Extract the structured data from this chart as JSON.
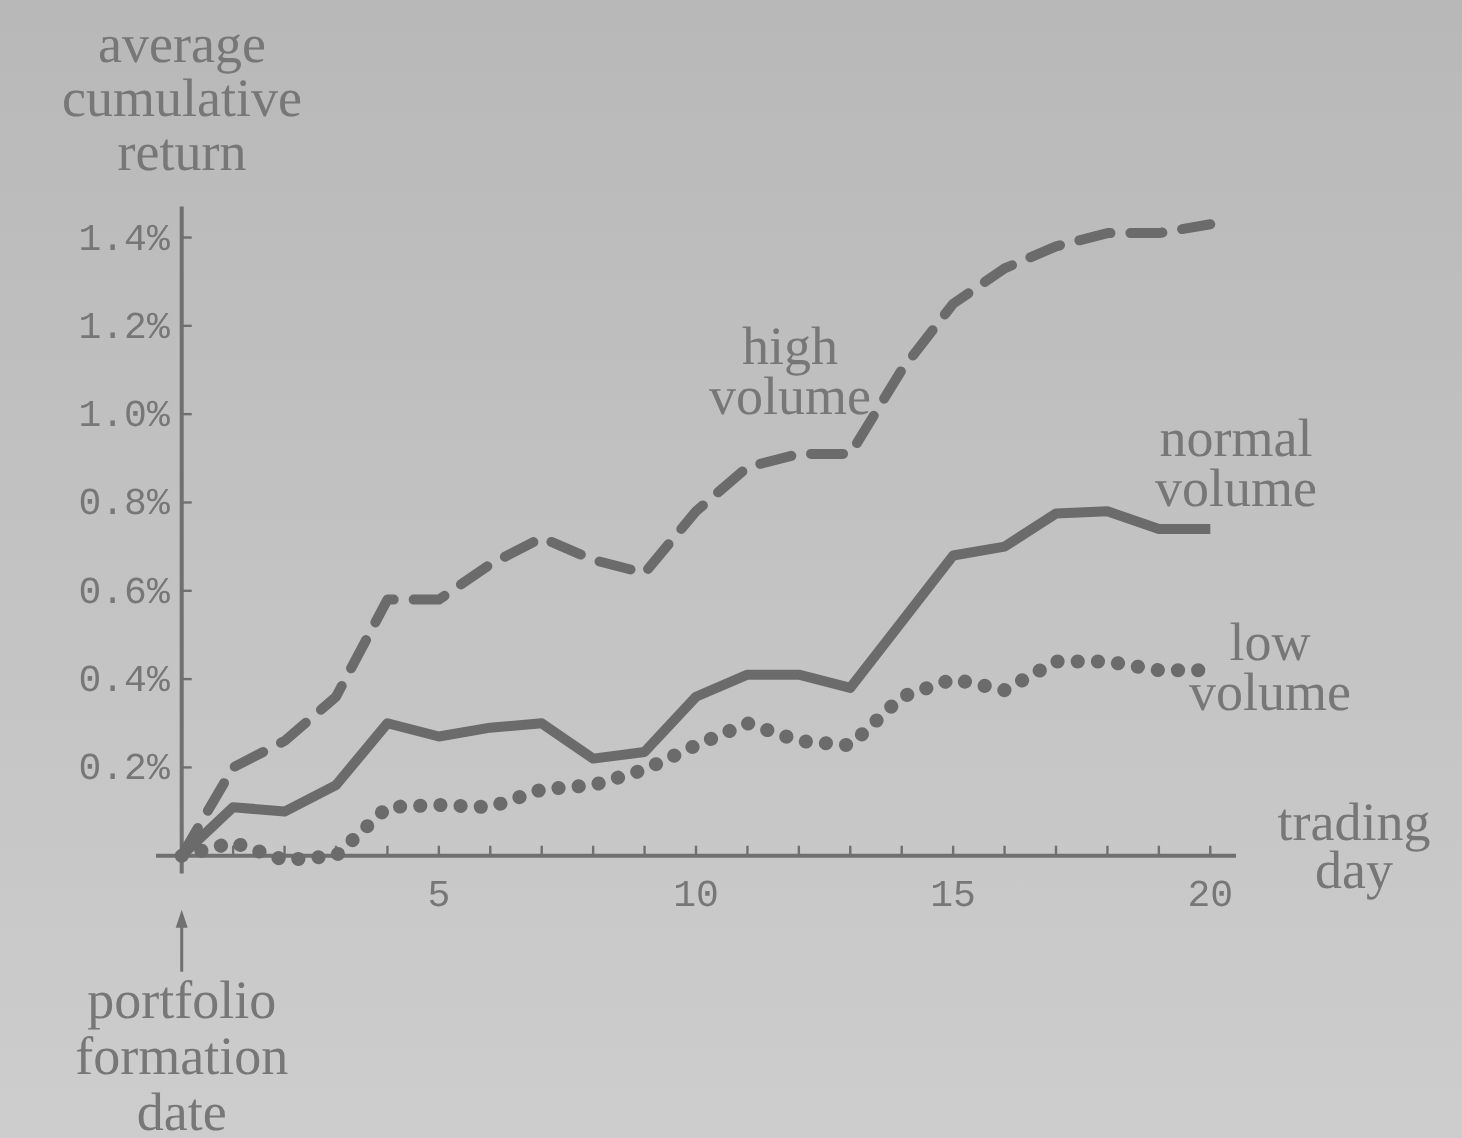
{
  "chart_data": {
    "type": "line",
    "xlabel": "trading day",
    "ylabel": "average cumulative return",
    "x": [
      0,
      1,
      2,
      3,
      4,
      5,
      6,
      7,
      8,
      9,
      10,
      11,
      12,
      13,
      14,
      15,
      16,
      17,
      18,
      19,
      20
    ],
    "xlim": [
      -0.5,
      20.5
    ],
    "xticks": [
      {
        "value": 0,
        "label": null
      },
      {
        "value": 1,
        "label": null
      },
      {
        "value": 2,
        "label": null
      },
      {
        "value": 3,
        "label": null
      },
      {
        "value": 4,
        "label": null
      },
      5,
      {
        "value": 6,
        "label": null
      },
      {
        "value": 7,
        "label": null
      },
      {
        "value": 8,
        "label": null
      },
      {
        "value": 9,
        "label": null
      },
      10,
      {
        "value": 11,
        "label": null
      },
      {
        "value": 12,
        "label": null
      },
      {
        "value": 13,
        "label": null
      },
      {
        "value": 14,
        "label": null
      },
      15,
      {
        "value": 16,
        "label": null
      },
      {
        "value": 17,
        "label": null
      },
      {
        "value": 18,
        "label": null
      },
      {
        "value": 19,
        "label": null
      },
      20
    ],
    "ylim": [
      -0.04,
      1.47
    ],
    "yticks": [
      {
        "value": 0,
        "label": null
      },
      {
        "value": 0.2,
        "label": "0.2%"
      },
      {
        "value": 0.4,
        "label": "0.4%"
      },
      {
        "value": 0.6,
        "label": "0.6%"
      },
      {
        "value": 0.8,
        "label": "0.8%"
      },
      {
        "value": 1.0,
        "label": "1.0%"
      },
      {
        "value": 1.2,
        "label": "1.2%"
      },
      {
        "value": 1.4,
        "label": "1.4%"
      }
    ],
    "marker": "none",
    "series": [
      {
        "name": "high volume",
        "color": "#6b6b6b",
        "line_style": "dashed",
        "values": [
          0,
          0.2,
          0.26,
          0.36,
          0.58,
          0.58,
          0.66,
          0.72,
          0.67,
          0.64,
          0.78,
          0.88,
          0.91,
          0.91,
          1.1,
          1.25,
          1.33,
          1.38,
          1.41,
          1.41,
          1.43
        ]
      },
      {
        "name": "normal volume",
        "color": "#6b6b6b",
        "line_style": "solid",
        "values": [
          0,
          0.11,
          0.1,
          0.16,
          0.3,
          0.27,
          0.29,
          0.3,
          0.22,
          0.235,
          0.36,
          0.41,
          0.41,
          0.38,
          0.53,
          0.68,
          0.7,
          0.775,
          0.78,
          0.74,
          0.74
        ]
      },
      {
        "name": "low volume",
        "color": "#6b6b6b",
        "line_style": "dotted",
        "values": [
          0,
          0.03,
          -0.01,
          0,
          0.11,
          0.115,
          0.11,
          0.15,
          0.16,
          0.195,
          0.25,
          0.3,
          0.26,
          0.25,
          0.36,
          0.4,
          0.375,
          0.44,
          0.44,
          0.42,
          0.42
        ]
      }
    ],
    "annotations": [
      {
        "text": "portfolio formation date",
        "x": 0,
        "y": 0
      }
    ]
  }
}
